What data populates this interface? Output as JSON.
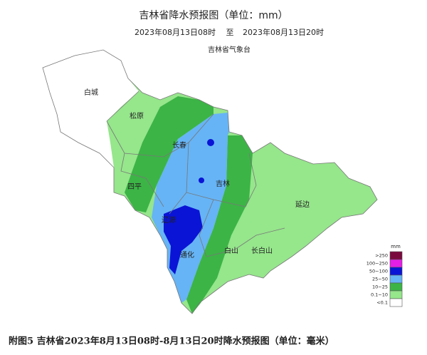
{
  "header": {
    "title": "吉林省降水预报图（单位：mm）",
    "time_start": "2023年08月13日08时",
    "time_sep": "至",
    "time_end": "2023年08月13日20时",
    "issuer": "吉林省气象台"
  },
  "cities": [
    "白城",
    "松原",
    "长春",
    "吉林",
    "四平",
    "辽源",
    "通化",
    "白山",
    "长白山",
    "延边"
  ],
  "legend": {
    "unit": "mm",
    "items": [
      {
        "label": ">250",
        "color": "#7a0a3e"
      },
      {
        "label": "100~250",
        "color": "#e61ee6"
      },
      {
        "label": "50~100",
        "color": "#0a14d6"
      },
      {
        "label": "25~50",
        "color": "#66b4f5"
      },
      {
        "label": "10~25",
        "color": "#3cb446"
      },
      {
        "label": "0.1~10",
        "color": "#96e68c"
      },
      {
        "label": "<0.1",
        "color": "#ffffff"
      }
    ]
  },
  "caption": "附图5   吉林省2023年8月13日08时-8月13日20时降水预报图（单位：毫米）"
}
